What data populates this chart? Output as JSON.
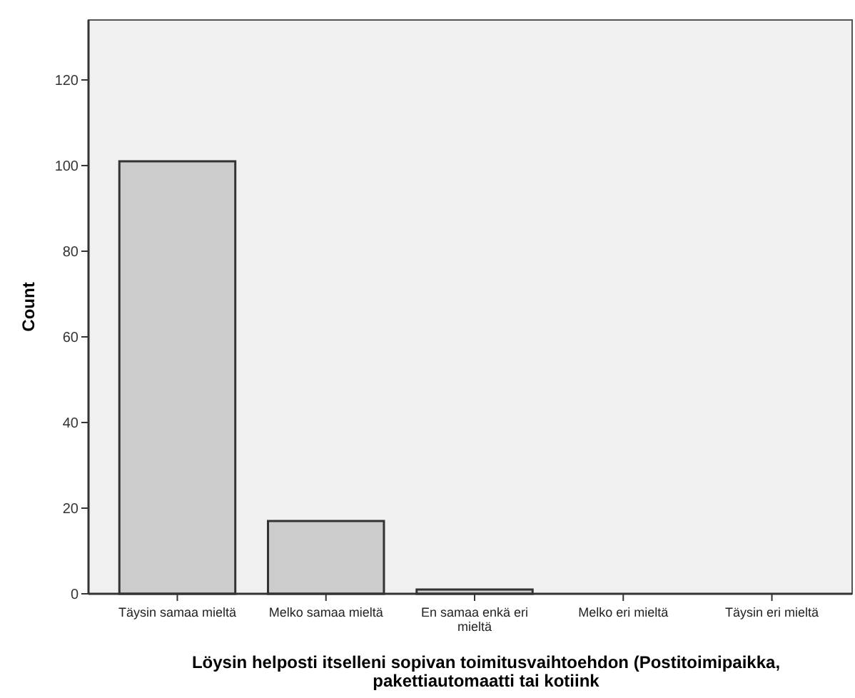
{
  "chart_data": {
    "type": "bar",
    "xlabel": "Löysin helposti itselleni sopivan toimitusvaihtoehdon  (Postitoimipaikka,\npakettiautomaatti tai kotiink",
    "ylabel": "Count",
    "categories": [
      "Täysin samaa mieltä",
      "Melko samaa mieltä",
      "En samaa enkä eri mieltä",
      "Melko eri mieltä",
      "Täysin eri mieltä"
    ],
    "values": [
      101,
      17,
      1,
      0,
      0
    ],
    "color": "#cccccc",
    "ylim": [
      0,
      134
    ],
    "yticks": [
      0,
      20,
      40,
      60,
      80,
      100,
      120
    ],
    "grid": false
  }
}
